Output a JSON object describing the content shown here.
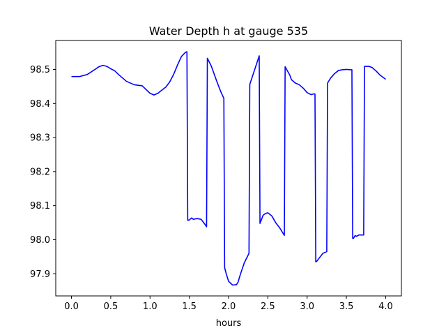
{
  "chart_data": {
    "type": "line",
    "title": "Water Depth h at gauge 535",
    "xlabel": "hours",
    "ylabel": "",
    "xlim": [
      -0.2,
      4.2
    ],
    "ylim": [
      97.835,
      98.585
    ],
    "xticks": [
      0.0,
      0.5,
      1.0,
      1.5,
      2.0,
      2.5,
      3.0,
      3.5,
      4.0
    ],
    "xtick_labels": [
      "0.0",
      "0.5",
      "1.0",
      "1.5",
      "2.0",
      "2.5",
      "3.0",
      "3.5",
      "4.0"
    ],
    "yticks": [
      97.9,
      98.0,
      98.1,
      98.2,
      98.3,
      98.4,
      98.5
    ],
    "ytick_labels": [
      "97.9",
      "98.0",
      "98.1",
      "98.2",
      "98.3",
      "98.4",
      "98.5"
    ],
    "grid": false,
    "legend": "none",
    "series": [
      {
        "color": "#0000ff",
        "x": [
          0.0,
          0.1,
          0.2,
          0.3,
          0.35,
          0.4,
          0.45,
          0.5,
          0.55,
          0.6,
          0.7,
          0.8,
          0.9,
          1.0,
          1.05,
          1.1,
          1.2,
          1.25,
          1.3,
          1.35,
          1.4,
          1.45,
          1.47,
          1.48,
          1.5,
          1.53,
          1.55,
          1.6,
          1.65,
          1.7,
          1.72,
          1.73,
          1.78,
          1.85,
          1.9,
          1.94,
          1.95,
          1.97,
          2.0,
          2.05,
          2.1,
          2.12,
          2.15,
          2.2,
          2.26,
          2.27,
          2.39,
          2.4,
          2.44,
          2.47,
          2.5,
          2.55,
          2.6,
          2.65,
          2.71,
          2.72,
          2.78,
          2.8,
          2.85,
          2.9,
          2.95,
          3.0,
          3.05,
          3.08,
          3.1,
          3.11,
          3.12,
          3.15,
          3.2,
          3.25,
          3.26,
          3.3,
          3.35,
          3.4,
          3.45,
          3.5,
          3.55,
          3.57,
          3.58,
          3.59,
          3.61,
          3.63,
          3.66,
          3.72,
          3.73,
          3.79,
          3.83,
          3.88,
          3.93,
          4.0
        ],
        "y": [
          98.479,
          98.479,
          98.485,
          98.5,
          98.508,
          98.512,
          98.509,
          98.502,
          98.496,
          98.485,
          98.465,
          98.455,
          98.452,
          98.43,
          98.425,
          98.43,
          98.448,
          98.463,
          98.485,
          98.513,
          98.538,
          98.55,
          98.552,
          98.057,
          98.058,
          98.064,
          98.06,
          98.062,
          98.06,
          98.045,
          98.038,
          98.533,
          98.51,
          98.465,
          98.435,
          98.415,
          97.918,
          97.9,
          97.878,
          97.867,
          97.868,
          97.875,
          97.898,
          97.932,
          97.96,
          98.456,
          98.54,
          98.048,
          98.072,
          98.077,
          98.079,
          98.07,
          98.05,
          98.035,
          98.013,
          98.508,
          98.483,
          98.47,
          98.46,
          98.455,
          98.445,
          98.432,
          98.426,
          98.428,
          98.428,
          97.935,
          97.936,
          97.945,
          97.96,
          97.965,
          98.46,
          98.475,
          98.488,
          98.497,
          98.499,
          98.5,
          98.499,
          98.499,
          98.004,
          98.004,
          98.012,
          98.01,
          98.014,
          98.014,
          98.509,
          98.509,
          98.505,
          98.495,
          98.483,
          98.471
        ]
      }
    ]
  }
}
